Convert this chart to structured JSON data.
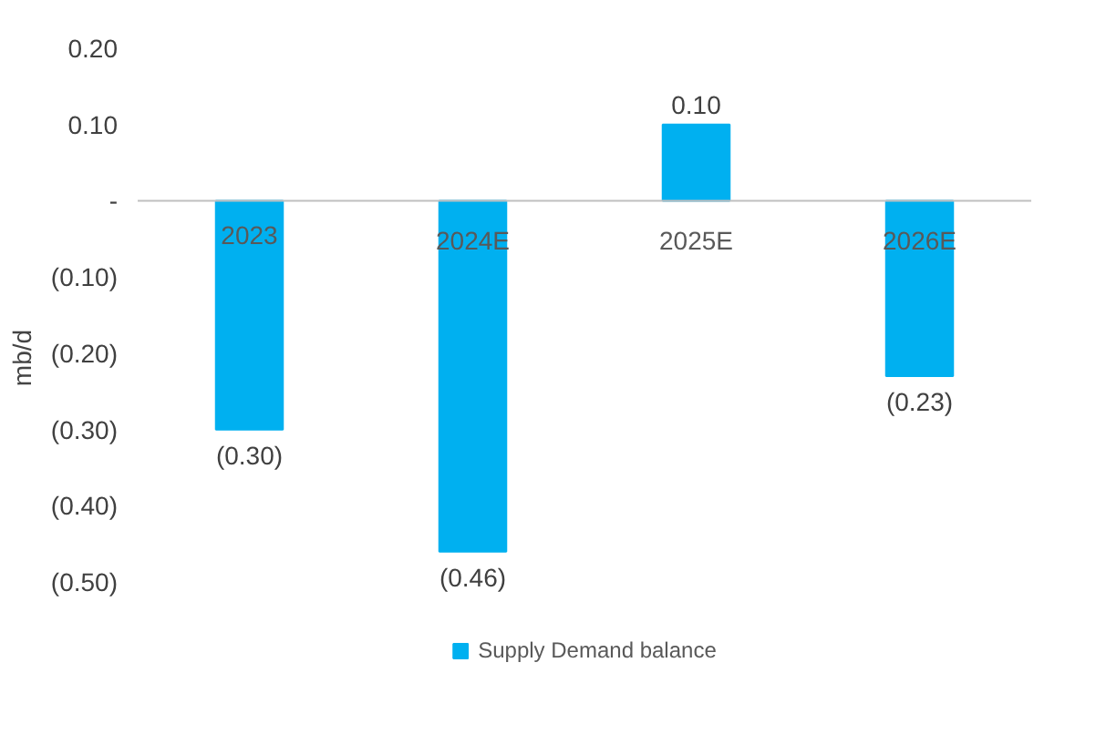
{
  "chart_data": {
    "type": "bar",
    "ylabel": "mb/d",
    "categories": [
      "2023",
      "2024E",
      "2025E",
      "2026E"
    ],
    "series": [
      {
        "name": "Supply Demand balance",
        "color": "#00b0f0",
        "values": [
          -0.3,
          -0.46,
          0.1,
          -0.23
        ],
        "value_labels": [
          "(0.30)",
          "(0.46)",
          "0.10",
          "(0.23)"
        ]
      }
    ],
    "ylim": [
      -0.5,
      0.2
    ],
    "yticks": [
      {
        "value": 0.2,
        "label": "0.20"
      },
      {
        "value": 0.1,
        "label": "0.10"
      },
      {
        "value": 0,
        "label": "-"
      },
      {
        "value": -0.1,
        "label": "(0.10)"
      },
      {
        "value": -0.2,
        "label": "(0.20)"
      },
      {
        "value": -0.3,
        "label": "(0.30)"
      },
      {
        "value": -0.4,
        "label": "(0.40)"
      },
      {
        "value": -0.5,
        "label": "(0.50)"
      }
    ],
    "grid": false,
    "legend": "bottom"
  }
}
